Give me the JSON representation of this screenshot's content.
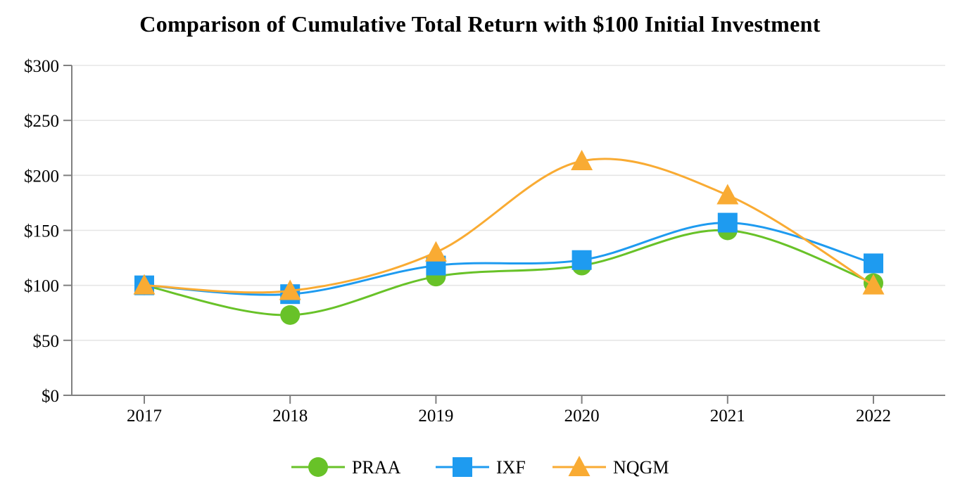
{
  "chart_data": {
    "type": "line",
    "title": "Comparison of Cumulative Total Return with $100 Initial Investment",
    "x_labels": [
      "2017",
      "2018",
      "2019",
      "2020",
      "2021",
      "2022"
    ],
    "y_ticks": [
      0,
      50,
      100,
      150,
      200,
      250,
      300
    ],
    "y_tick_labels": [
      "$0",
      "$50",
      "$100",
      "$150",
      "$200",
      "$250",
      "$300"
    ],
    "ylim": [
      0,
      300
    ],
    "grid": "horizontal-only",
    "line_style": "smooth",
    "legend_position": "bottom-center",
    "axis_color": "#808080",
    "gridline_color": "#e6e6e6",
    "series": [
      {
        "name": "PRAA",
        "marker": "circle",
        "color": "#68c228",
        "values": [
          100,
          73,
          108,
          118,
          150,
          102
        ]
      },
      {
        "name": "IXF",
        "marker": "square",
        "color": "#1e9bf0",
        "values": [
          100,
          92,
          118,
          123,
          157,
          120
        ]
      },
      {
        "name": "NQGM",
        "marker": "triangle",
        "color": "#f9ab33",
        "values": [
          100,
          95,
          130,
          213,
          182,
          100
        ]
      }
    ]
  }
}
